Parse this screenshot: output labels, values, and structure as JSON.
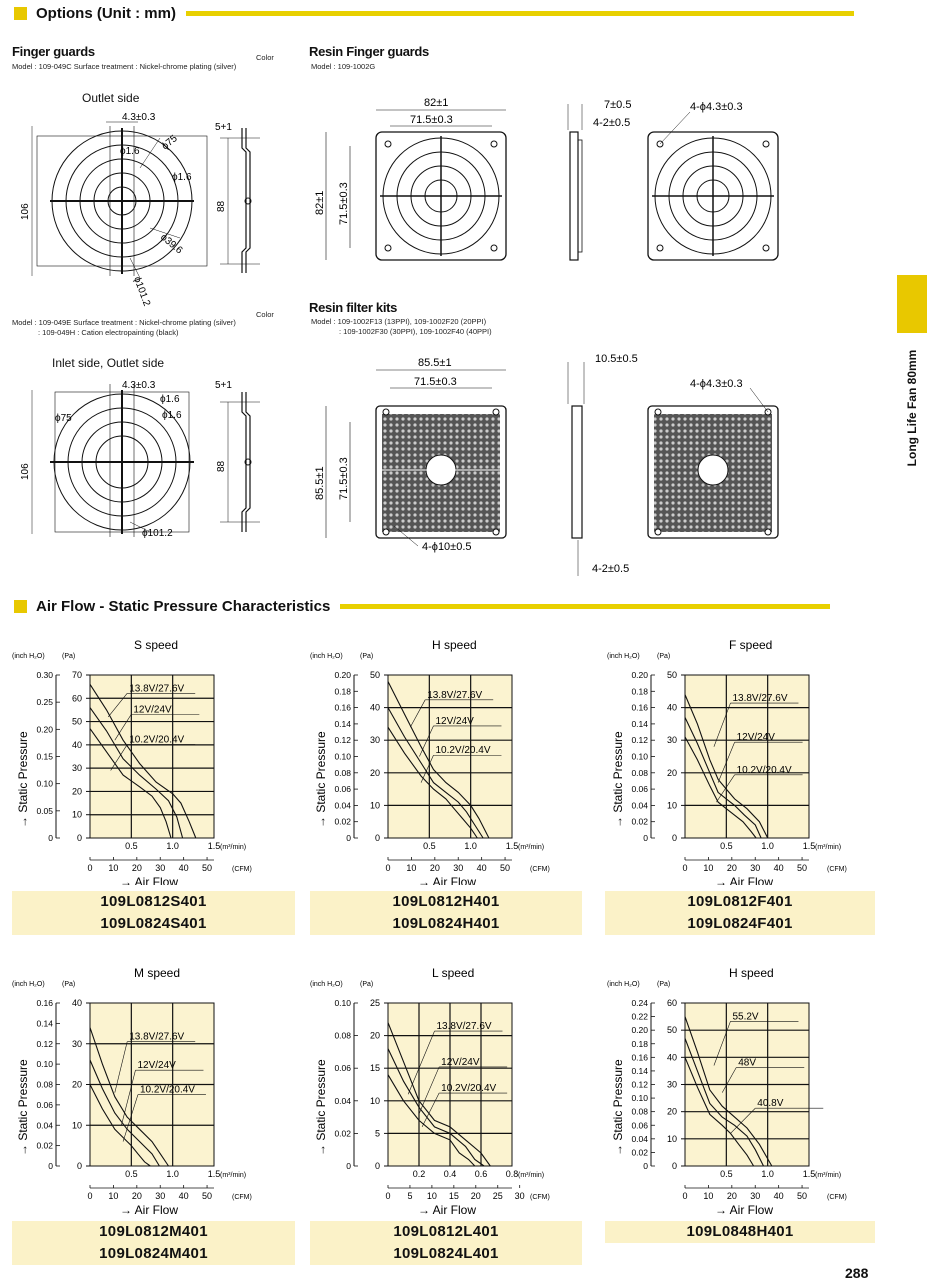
{
  "options": {
    "heading": "Options (Unit : mm)",
    "finger_guards": {
      "title": "Finger guards",
      "color_label": "Color",
      "model_line": "Model : 109-049C    Surface treatment : Nickel-chrome plating (silver)",
      "view_title": "Outlet side",
      "dims": {
        "a": "4.3±0.3",
        "b": "ϕ1.6",
        "c": "ϕ75",
        "d": "ϕ1.6",
        "e": "ϕ39.6",
        "f": "ϕ101.2",
        "g": "106",
        "h": "88",
        "i": "5+1"
      }
    },
    "finger_guards_2": {
      "color_label": "Color",
      "model_line1": "Model : 109-049E    Surface treatment : Nickel-chrome plating (silver)",
      "model_line2": ": 109-049H                                    : Cation electropainting (black)",
      "view_title": "Inlet side, Outlet side",
      "dims": {
        "a": "4.3±0.3",
        "b": "ϕ1.6",
        "c": "ϕ75",
        "d": "ϕ1.6",
        "f": "ϕ101.2",
        "g": "106",
        "h": "88",
        "i": "5+1"
      }
    },
    "resin_guards": {
      "title": "Resin Finger guards",
      "model_line": "Model : 109-1002G",
      "dims": {
        "w": "82±1",
        "w2": "71.5±0.3",
        "h": "82±1",
        "h2": "71.5±0.3",
        "t1": "7±0.5",
        "t2": "4-2±0.5",
        "hole": "4-ϕ4.3±0.3"
      }
    },
    "resin_filter": {
      "title": "Resin filter kits",
      "model_line1": "Model : 109-1002F13 (13PPI),   109-1002F20 (20PPI)",
      "model_line2": ": 109-1002F30 (30PPI),   109-1002F40 (40PPI)",
      "dims": {
        "w": "85.5±1",
        "w2": "71.5±0.3",
        "h": "85.5±1",
        "h2": "71.5±0.3",
        "t1": "10.5±0.5",
        "t2": "4-2±0.5",
        "hole": "4-ϕ4.3±0.3",
        "hole2": "4-ϕ10±0.5"
      }
    }
  },
  "airflow": {
    "heading": "Air Flow - Static Pressure Characteristics"
  },
  "side_tab": "Long Life Fan 80mm",
  "page_number": "288",
  "chart_data": [
    {
      "type": "line",
      "title": "S speed",
      "ylabel": "→ Static Pressure",
      "xlabel": "→ Air Flow",
      "units": {
        "y_in": "(inch H₂O)",
        "y_pa": "(Pa)",
        "x_m3": "(m³/min)",
        "x_cfm": "(CFM)"
      },
      "y_pa_ticks": [
        0,
        10,
        20,
        30,
        40,
        50,
        60,
        70
      ],
      "y_in_ticks": [
        "0",
        "0.05",
        "0.10",
        "0.15",
        "0.20",
        "0.25",
        "0.30"
      ],
      "x_m3_ticks": [
        "0.5",
        "1.0",
        "1.5"
      ],
      "x_cfm_ticks": [
        "0",
        "10",
        "20",
        "30",
        "40",
        "50"
      ],
      "xlim_m3": [
        0,
        1.5
      ],
      "ylim_pa": [
        0,
        70
      ],
      "cfm_per_unit": 35.31,
      "series": [
        {
          "name": "13.8V/27.6V",
          "x": [
            0,
            0.2,
            0.4,
            0.6,
            0.8,
            1.0,
            1.1,
            1.2,
            1.28
          ],
          "y": [
            66,
            55,
            42,
            32,
            24,
            19,
            15,
            7,
            0
          ]
        },
        {
          "name": "12V/24V",
          "x": [
            0,
            0.2,
            0.4,
            0.6,
            0.8,
            0.95,
            1.05,
            1.12
          ],
          "y": [
            56,
            46,
            34,
            27,
            21,
            16,
            9,
            0
          ]
        },
        {
          "name": "10.2V/20.4V",
          "x": [
            0,
            0.2,
            0.4,
            0.6,
            0.75,
            0.85,
            0.92,
            0.98
          ],
          "y": [
            47,
            37,
            27,
            22,
            18,
            13,
            7,
            0
          ]
        }
      ],
      "labels": [
        {
          "text": "13.8V/27.6V",
          "x": 0.45,
          "y": 63,
          "tx": 0.22,
          "ty": 52
        },
        {
          "text": "12V/24V",
          "x": 0.5,
          "y": 54,
          "tx": 0.3,
          "ty": 42
        },
        {
          "text": "10.2V/20.4V",
          "x": 0.45,
          "y": 41,
          "tx": 0.25,
          "ty": 29
        }
      ],
      "models": [
        "109L0812S401",
        "109L0824S401"
      ]
    },
    {
      "type": "line",
      "title": "H speed",
      "ylabel": "→ Static Pressure",
      "xlabel": "→ Air Flow",
      "units": {
        "y_in": "(inch H₂O)",
        "y_pa": "(Pa)",
        "x_m3": "(m³/min)",
        "x_cfm": "(CFM)"
      },
      "y_pa_ticks": [
        0,
        10,
        20,
        30,
        40,
        50
      ],
      "y_in_ticks": [
        "0",
        "0.02",
        "0.04",
        "0.06",
        "0.08",
        "0.10",
        "0.12",
        "0.14",
        "0.16",
        "0.18",
        "0.20"
      ],
      "x_m3_ticks": [
        "0.5",
        "1.0",
        "1.5"
      ],
      "x_cfm_ticks": [
        "0",
        "10",
        "20",
        "30",
        "40",
        "50"
      ],
      "xlim_m3": [
        0,
        1.5
      ],
      "ylim_pa": [
        0,
        50
      ],
      "cfm_per_unit": 35.31,
      "series": [
        {
          "name": "13.8V/27.6V",
          "x": [
            0,
            0.2,
            0.4,
            0.55,
            0.7,
            0.85,
            1.0,
            1.1,
            1.22
          ],
          "y": [
            48,
            38,
            28,
            21,
            17,
            14,
            10,
            6,
            0
          ]
        },
        {
          "name": "12V/24V",
          "x": [
            0,
            0.2,
            0.4,
            0.55,
            0.7,
            0.85,
            0.95,
            1.05,
            1.15
          ],
          "y": [
            40,
            31,
            23,
            17,
            14,
            11,
            8,
            4,
            0
          ]
        },
        {
          "name": "10.2V/20.4V",
          "x": [
            0,
            0.2,
            0.4,
            0.55,
            0.7,
            0.8,
            0.9,
            1.0,
            1.08
          ],
          "y": [
            34,
            26,
            19,
            15,
            12,
            9,
            6,
            3,
            0
          ]
        }
      ],
      "labels": [
        {
          "text": "13.8V/27.6V",
          "x": 0.45,
          "y": 43,
          "tx": 0.27,
          "ty": 34
        },
        {
          "text": "12V/24V",
          "x": 0.55,
          "y": 35,
          "tx": 0.38,
          "ty": 25
        },
        {
          "text": "10.2V/20.4V",
          "x": 0.55,
          "y": 26,
          "tx": 0.4,
          "ty": 17
        }
      ],
      "models": [
        "109L0812H401",
        "109L0824H401"
      ]
    },
    {
      "type": "line",
      "title": "F speed",
      "ylabel": "→ Static Pressure",
      "xlabel": "→ Air Flow",
      "units": {
        "y_in": "(inch H₂O)",
        "y_pa": "(Pa)",
        "x_m3": "(m³/min)",
        "x_cfm": "(CFM)"
      },
      "y_pa_ticks": [
        0,
        10,
        20,
        30,
        40,
        50
      ],
      "y_in_ticks": [
        "0",
        "0.02",
        "0.04",
        "0.06",
        "0.08",
        "0.10",
        "0.12",
        "0.14",
        "0.16",
        "0.18",
        "0.20"
      ],
      "x_m3_ticks": [
        "0.5",
        "1.0",
        "1.5"
      ],
      "x_cfm_ticks": [
        "0",
        "10",
        "20",
        "30",
        "40",
        "50"
      ],
      "xlim_m3": [
        0,
        1.5
      ],
      "ylim_pa": [
        0,
        50
      ],
      "cfm_per_unit": 35.31,
      "series": [
        {
          "name": "13.8V/27.6V",
          "x": [
            0,
            0.15,
            0.3,
            0.4,
            0.5,
            0.6,
            0.75,
            0.9,
            1.0
          ],
          "y": [
            44,
            35,
            24,
            18,
            15,
            12,
            9,
            5,
            0
          ]
        },
        {
          "name": "12V/24V",
          "x": [
            0,
            0.15,
            0.3,
            0.4,
            0.5,
            0.6,
            0.72,
            0.85,
            0.92
          ],
          "y": [
            37,
            29,
            20,
            14,
            12,
            10,
            7,
            4,
            0
          ]
        },
        {
          "name": "10.2V/20.4V",
          "x": [
            0,
            0.15,
            0.3,
            0.4,
            0.5,
            0.6,
            0.7,
            0.8,
            0.86
          ],
          "y": [
            31,
            24,
            16,
            11,
            9,
            7,
            5,
            2,
            0
          ]
        }
      ],
      "labels": [
        {
          "text": "13.8V/27.6V",
          "x": 0.55,
          "y": 42,
          "tx": 0.35,
          "ty": 28
        },
        {
          "text": "12V/24V",
          "x": 0.6,
          "y": 30,
          "tx": 0.4,
          "ty": 17
        },
        {
          "text": "10.2V/20.4V",
          "x": 0.6,
          "y": 20,
          "tx": 0.38,
          "ty": 11
        }
      ],
      "models": [
        "109L0812F401",
        "109L0824F401"
      ]
    },
    {
      "type": "line",
      "title": "M speed",
      "ylabel": "→ Static Pressure",
      "xlabel": "→ Air Flow",
      "units": {
        "y_in": "(inch H₂O)",
        "y_pa": "(Pa)",
        "x_m3": "(m³/min)",
        "x_cfm": "(CFM)"
      },
      "y_pa_ticks": [
        0,
        10,
        20,
        30,
        40
      ],
      "y_in_ticks": [
        "0",
        "0.02",
        "0.04",
        "0.06",
        "0.08",
        "0.10",
        "0.12",
        "0.14",
        "0.16"
      ],
      "x_m3_ticks": [
        "0.5",
        "1.0",
        "1.5"
      ],
      "x_cfm_ticks": [
        "0",
        "10",
        "20",
        "30",
        "40",
        "50"
      ],
      "xlim_m3": [
        0,
        1.5
      ],
      "ylim_pa": [
        0,
        40
      ],
      "cfm_per_unit": 35.31,
      "series": [
        {
          "name": "13.8V/27.6V",
          "x": [
            0,
            0.15,
            0.3,
            0.45,
            0.6,
            0.75,
            0.85,
            0.95
          ],
          "y": [
            34,
            25,
            17,
            12,
            9,
            6,
            3,
            0
          ]
        },
        {
          "name": "12V/24V",
          "x": [
            0,
            0.15,
            0.3,
            0.45,
            0.55,
            0.65,
            0.75,
            0.84
          ],
          "y": [
            26,
            19,
            13,
            9,
            7,
            5,
            3,
            0
          ]
        },
        {
          "name": "10.2V/20.4V",
          "x": [
            0,
            0.15,
            0.3,
            0.4,
            0.5,
            0.58,
            0.66,
            0.73
          ],
          "y": [
            20,
            14,
            9,
            7,
            5,
            3,
            1,
            0
          ]
        }
      ],
      "labels": [
        {
          "text": "13.8V/27.6V",
          "x": 0.45,
          "y": 31,
          "tx": 0.3,
          "ty": 18
        },
        {
          "text": "12V/24V",
          "x": 0.55,
          "y": 24,
          "tx": 0.38,
          "ty": 10
        },
        {
          "text": "10.2V/20.4V",
          "x": 0.58,
          "y": 18,
          "tx": 0.4,
          "ty": 6
        }
      ],
      "models": [
        "109L0812M401",
        "109L0824M401"
      ]
    },
    {
      "type": "line",
      "title": "L speed",
      "ylabel": "→ Static Pressure",
      "xlabel": "→ Air Flow",
      "units": {
        "y_in": "(inch H₂O)",
        "y_pa": "(Pa)",
        "x_m3": "(m³/min)",
        "x_cfm": "(CFM)"
      },
      "y_pa_ticks": [
        0,
        5,
        10,
        15,
        20,
        25
      ],
      "y_in_ticks": [
        "0",
        "0.02",
        "0.04",
        "0.06",
        "0.08",
        "0.10"
      ],
      "x_m3_ticks": [
        "0.2",
        "0.4",
        "0.6",
        "0.8"
      ],
      "x_cfm_ticks": [
        "0",
        "5",
        "10",
        "15",
        "20",
        "25",
        "30"
      ],
      "xlim_m3": [
        0,
        0.8
      ],
      "ylim_pa": [
        0,
        25
      ],
      "cfm_per_unit": 35.31,
      "series": [
        {
          "name": "13.8V/27.6V",
          "x": [
            0,
            0.1,
            0.2,
            0.3,
            0.4,
            0.5,
            0.6,
            0.66
          ],
          "y": [
            22,
            16,
            10,
            7,
            6,
            4,
            2,
            0
          ]
        },
        {
          "name": "12V/24V",
          "x": [
            0,
            0.1,
            0.2,
            0.3,
            0.4,
            0.5,
            0.56,
            0.62
          ],
          "y": [
            18,
            13,
            9,
            6,
            5,
            3,
            1,
            0
          ]
        },
        {
          "name": "10.2V/20.4V",
          "x": [
            0,
            0.1,
            0.2,
            0.3,
            0.4,
            0.46,
            0.52,
            0.56
          ],
          "y": [
            14,
            10,
            7,
            5,
            4,
            2,
            1,
            0
          ]
        }
      ],
      "labels": [
        {
          "text": "13.8V/27.6V",
          "x": 0.3,
          "y": 21,
          "tx": 0.13,
          "ty": 11
        },
        {
          "text": "12V/24V",
          "x": 0.33,
          "y": 15.5,
          "tx": 0.2,
          "ty": 8
        },
        {
          "text": "10.2V/20.4V",
          "x": 0.33,
          "y": 11.5,
          "tx": 0.22,
          "ty": 6
        }
      ],
      "models": [
        "109L0812L401",
        "109L0824L401"
      ]
    },
    {
      "type": "line",
      "title": "H speed",
      "ylabel": "→ Static Pressure",
      "xlabel": "→ Air Flow",
      "units": {
        "y_in": "(inch H₂O)",
        "y_pa": "(Pa)",
        "x_m3": "(m³/min)",
        "x_cfm": "(CFM)"
      },
      "y_pa_ticks": [
        0,
        10,
        20,
        30,
        40,
        50,
        60
      ],
      "y_in_ticks": [
        "0",
        "0.02",
        "0.04",
        "0.06",
        "0.08",
        "0.10",
        "0.12",
        "0.14",
        "0.16",
        "0.18",
        "0.20",
        "0.22",
        "0.24"
      ],
      "x_m3_ticks": [
        "0.5",
        "1.0",
        "1.5"
      ],
      "x_cfm_ticks": [
        "0",
        "10",
        "20",
        "30",
        "40",
        "50"
      ],
      "xlim_m3": [
        0,
        1.5
      ],
      "ylim_pa": [
        0,
        60
      ],
      "cfm_per_unit": 35.31,
      "series": [
        {
          "name": "55.2V",
          "x": [
            0,
            0.15,
            0.3,
            0.45,
            0.6,
            0.75,
            0.9,
            1.05
          ],
          "y": [
            55,
            42,
            28,
            22,
            18,
            14,
            8,
            0
          ]
        },
        {
          "name": "48V",
          "x": [
            0,
            0.15,
            0.3,
            0.45,
            0.6,
            0.75,
            0.85,
            0.95
          ],
          "y": [
            47,
            35,
            23,
            18,
            15,
            11,
            6,
            0
          ]
        },
        {
          "name": "40.8V",
          "x": [
            0,
            0.15,
            0.3,
            0.45,
            0.55,
            0.65,
            0.75,
            0.83
          ],
          "y": [
            40,
            29,
            19,
            15,
            12,
            8,
            4,
            0
          ]
        }
      ],
      "labels": [
        {
          "text": "55.2V",
          "x": 0.55,
          "y": 54,
          "tx": 0.35,
          "ty": 37
        },
        {
          "text": "48V",
          "x": 0.62,
          "y": 37,
          "tx": 0.45,
          "ty": 27
        },
        {
          "text": "40.8V",
          "x": 0.85,
          "y": 22,
          "tx": 0.55,
          "ty": 12
        }
      ],
      "models": [
        "109L0848H401"
      ]
    }
  ]
}
